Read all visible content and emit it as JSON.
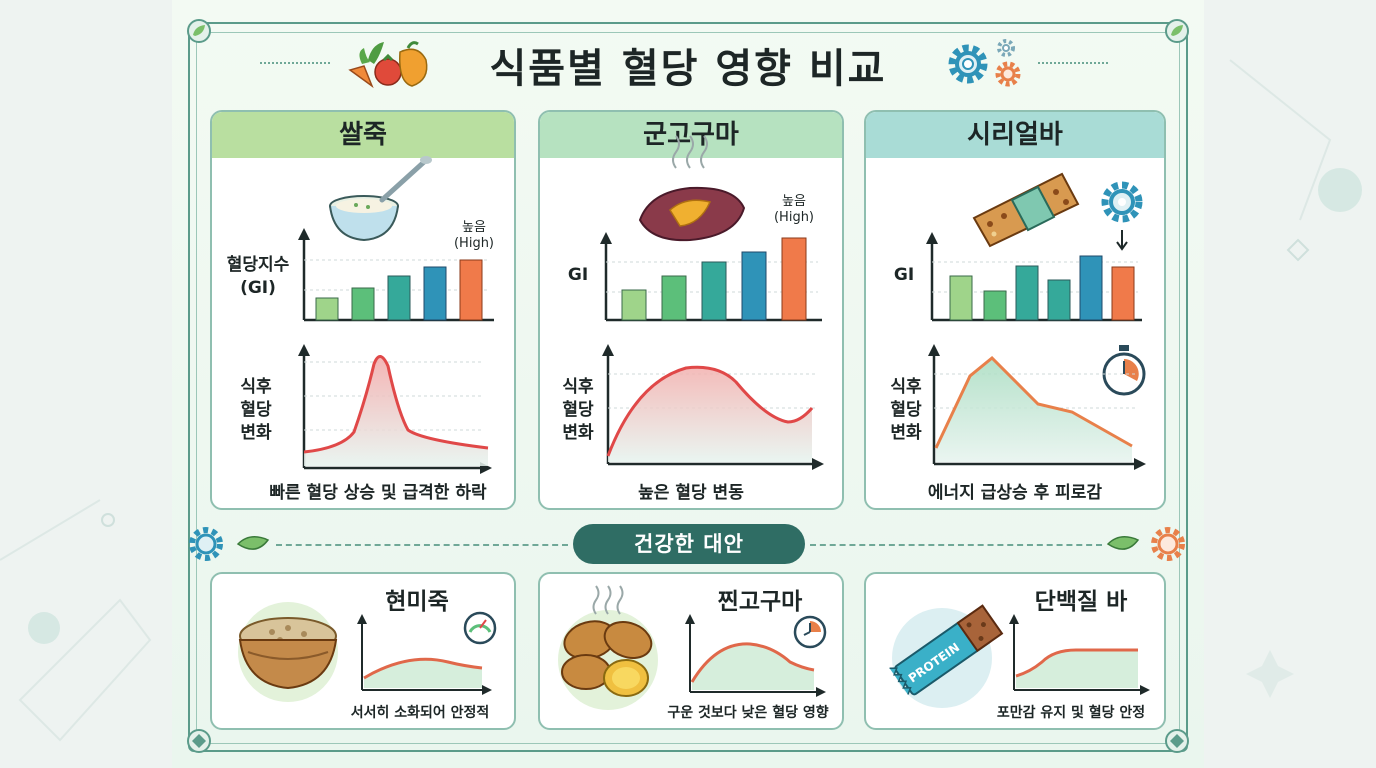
{
  "title": "식품별 혈당 영향 비교",
  "panels": [
    {
      "name": "쌀죽",
      "gi_label": "혈당지수 (GI)",
      "gi_label_lines": [
        "혈당지수",
        "(GI)"
      ],
      "high_label_lines": [
        "높음",
        "(High)"
      ],
      "curve_label_lines": [
        "식후",
        "혈당",
        "변화"
      ],
      "caption": "빠른 혈당 상승 및 급격한 하락",
      "header_color": "#b9dfa0"
    },
    {
      "name": "군고구마",
      "gi_label_lines": [
        "GI"
      ],
      "high_label_lines": [
        "높음",
        "(High)"
      ],
      "curve_label_lines": [
        "식후",
        "혈당",
        "변화"
      ],
      "caption": "높은 혈당 변동",
      "header_color": "#b6e2c0"
    },
    {
      "name": "시리얼바",
      "gi_label_lines": [
        "GI"
      ],
      "curve_label_lines": [
        "식후",
        "혈당",
        "변화"
      ],
      "caption": "에너지 급상승 후 피로감",
      "header_color": "#a9dcd6"
    }
  ],
  "alternatives_label": "건강한 대안",
  "alternatives": [
    {
      "name": "현미죽",
      "caption": "서서히 소화되어 안정적"
    },
    {
      "name": "찐고구마",
      "caption": "구운 것보다 낮은 혈당 영향"
    },
    {
      "name": "단백질 바",
      "caption": "포만감 유지 및 혈당 안정",
      "wrapper_text": "PROTEIN"
    }
  ],
  "colors": {
    "bar_palette": [
      "#9fd48a",
      "#5cbf7a",
      "#35a99a",
      "#2f93b8",
      "#f07a4a"
    ],
    "spike_curve": "#e04848",
    "energy_curve": "#e8804a",
    "stable_curve": "#e0684a",
    "frame": "#5b9b8a"
  }
}
